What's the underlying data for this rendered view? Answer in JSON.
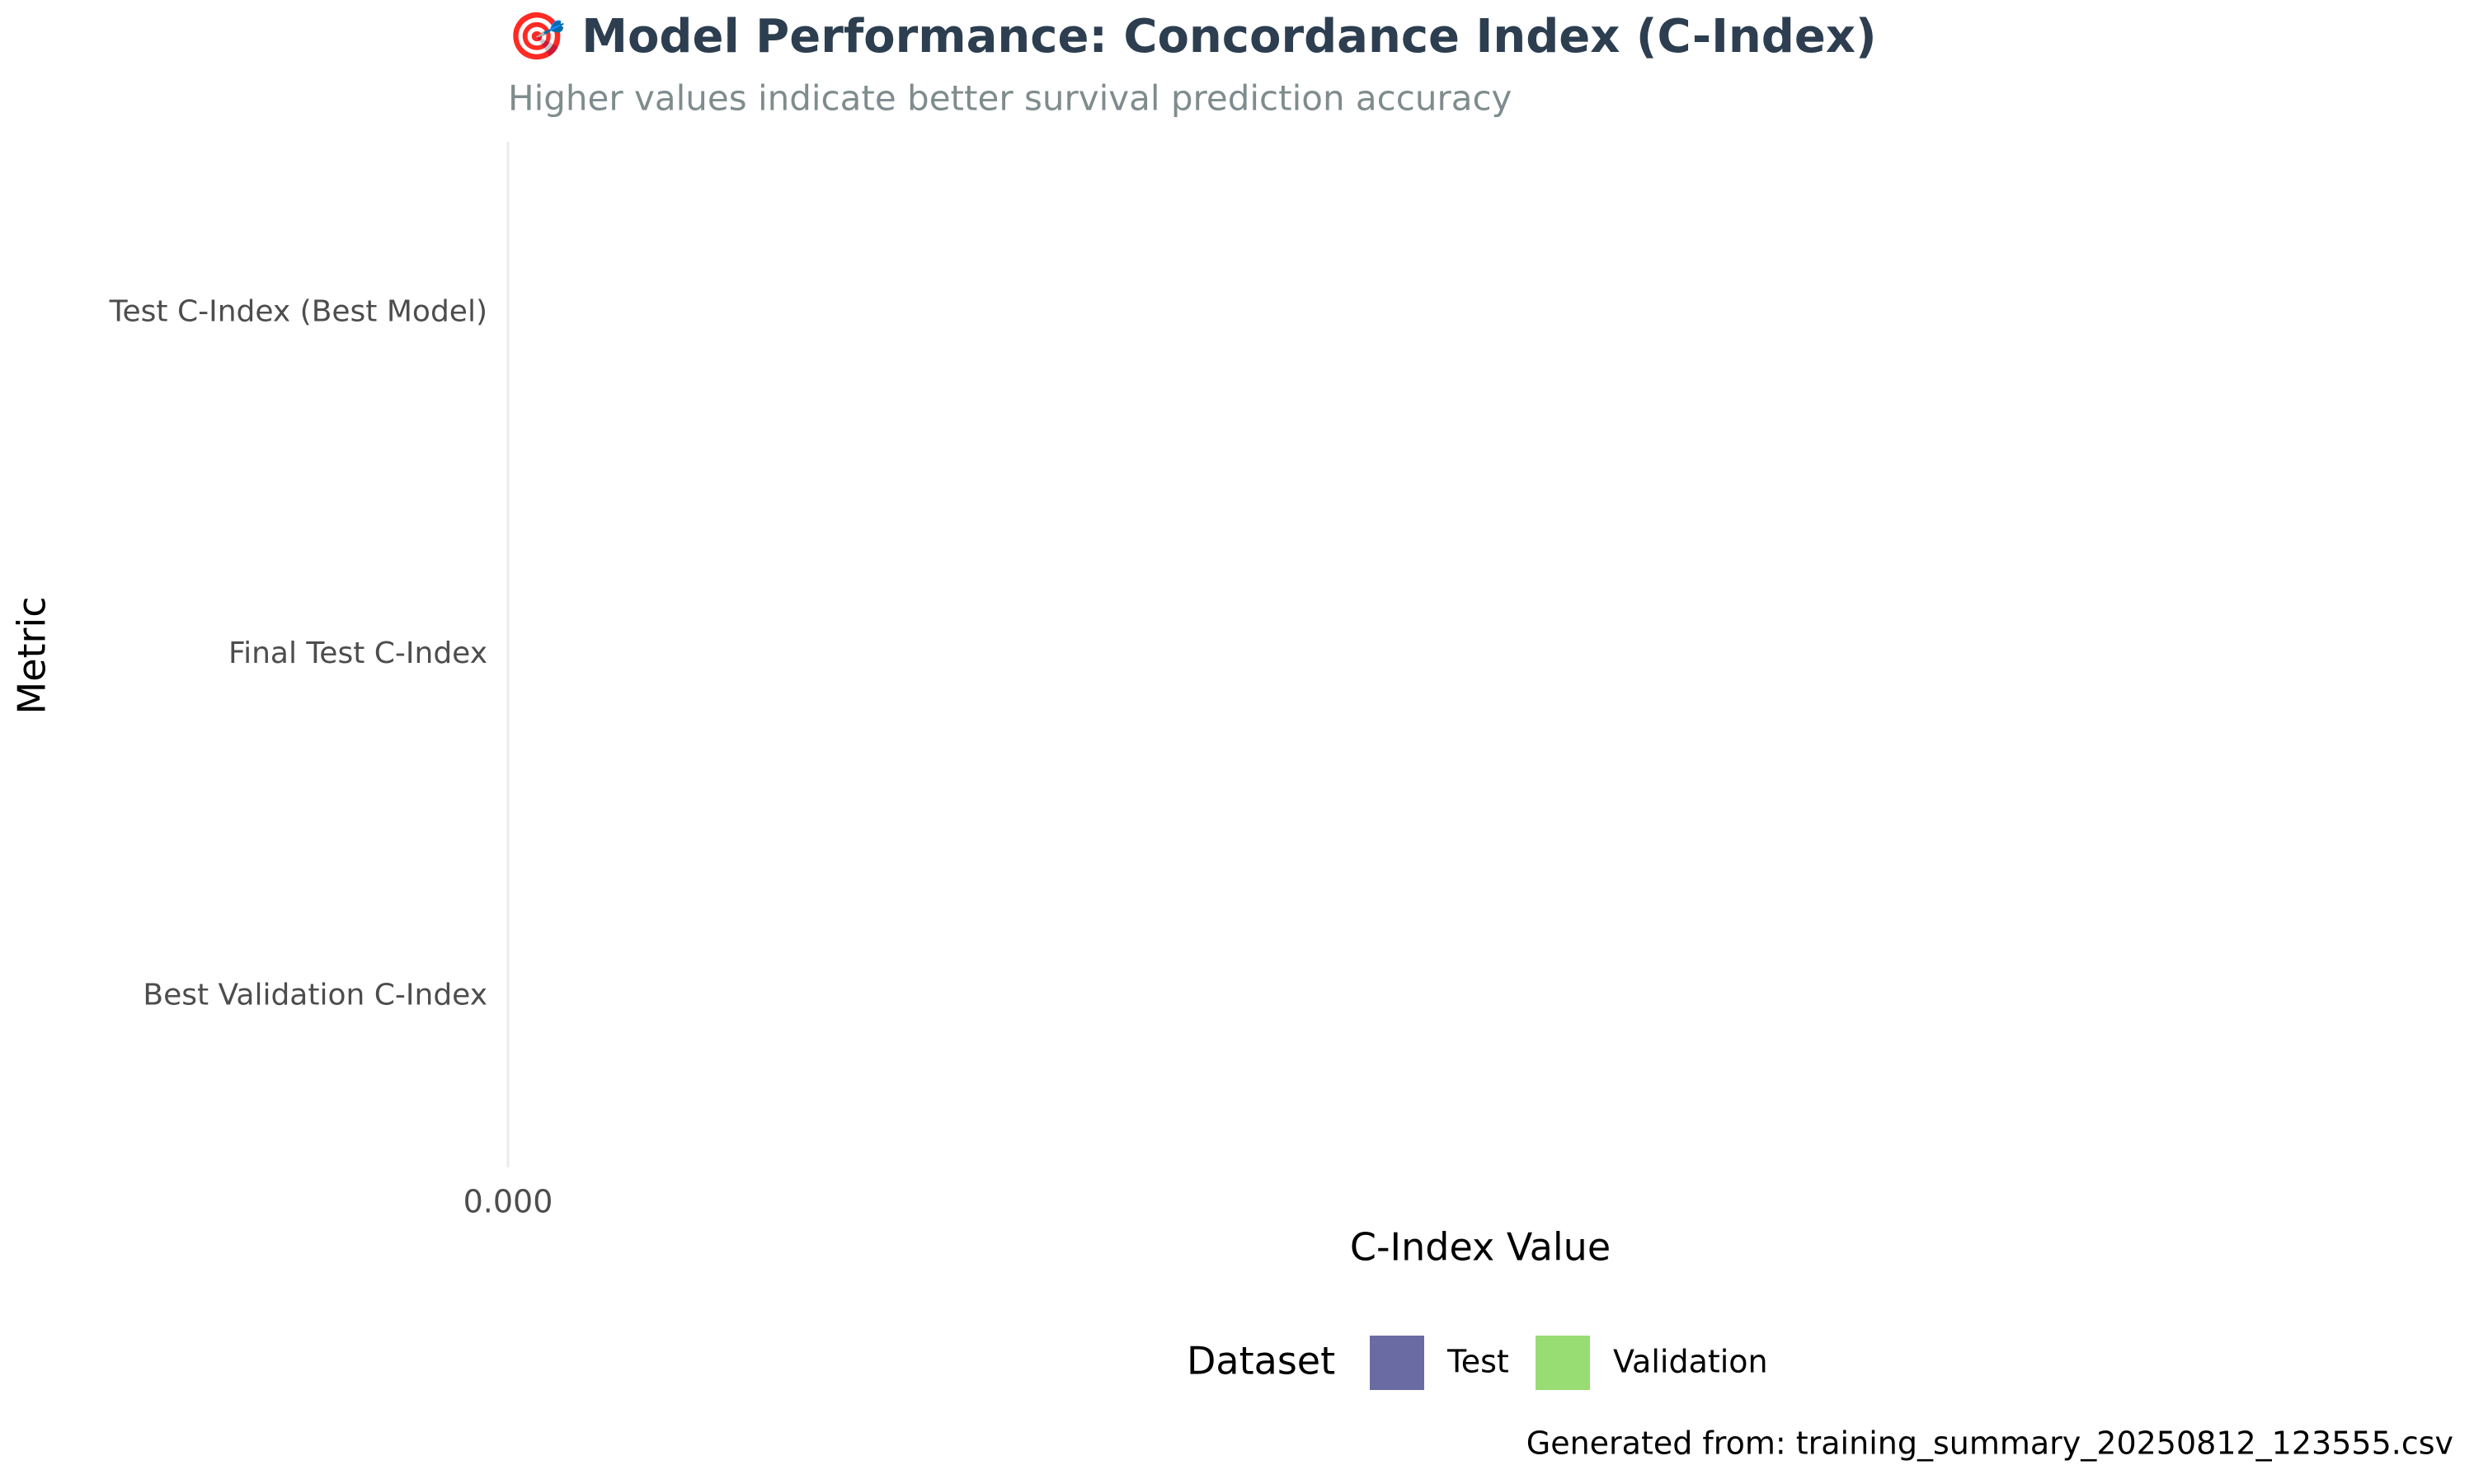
{
  "chart_data": {
    "type": "hbar",
    "title": "🎯 Model Performance: Concordance Index (C-Index)",
    "subtitle": "Higher values indicate better survival prediction accuracy",
    "x_label": "C-Index Value",
    "y_label": "Metric",
    "legend_title": "Dataset",
    "caption": "Generated from: training_summary_20250812_123555.csv",
    "categories": [
      "Test C-Index (Best Model)",
      "Final Test C-Index",
      "Best Validation C-Index"
    ],
    "series": [
      {
        "name": "Test",
        "color": "#6b6ba3",
        "values": [
          0,
          0,
          null
        ]
      },
      {
        "name": "Validation",
        "color": "#98dc74",
        "values": [
          null,
          null,
          0
        ]
      }
    ],
    "xlim": [
      0,
      1
    ],
    "xticks": [
      {
        "value": 0,
        "label": "0.000"
      }
    ],
    "legend": "bottom"
  }
}
